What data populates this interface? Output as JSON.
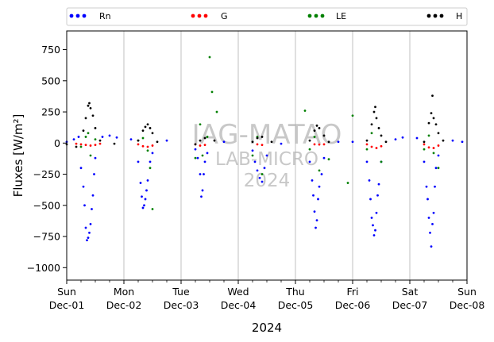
{
  "chart_data": {
    "type": "scatter",
    "ylabel": "Fluxes [W/m²]",
    "xlabel": "2024",
    "ylim": [
      -1100,
      900
    ],
    "yticks": [
      -1000,
      -750,
      -500,
      -250,
      0,
      250,
      500,
      750
    ],
    "xlim": [
      "2024-12-01",
      "2024-12-08"
    ],
    "xticks": [
      {
        "day": "Sun",
        "date": "Dec-01"
      },
      {
        "day": "Mon",
        "date": "Dec-02"
      },
      {
        "day": "Tue",
        "date": "Dec-03"
      },
      {
        "day": "Wed",
        "date": "Dec-04"
      },
      {
        "day": "Thu",
        "date": "Dec-05"
      },
      {
        "day": "Fri",
        "date": "Dec-06"
      },
      {
        "day": "Sat",
        "date": "Dec-07"
      },
      {
        "day": "Sun",
        "date": "Dec-08"
      }
    ],
    "grid": "vertical",
    "legend": "top, outside",
    "watermark": [
      "IAG-MATAO",
      "LAB-MICRO",
      "2024"
    ],
    "series": [
      {
        "name": "Rn",
        "color": "#0000ff",
        "points": [
          [
            "2024-12-01 00:00",
            10
          ],
          [
            "2024-12-01 03:00",
            30
          ],
          [
            "2024-12-01 05:00",
            50
          ],
          [
            "2024-12-01 06:00",
            -200
          ],
          [
            "2024-12-01 07:00",
            -350
          ],
          [
            "2024-12-01 07:30",
            -500
          ],
          [
            "2024-12-01 08:00",
            -680
          ],
          [
            "2024-12-01 08:30",
            -780
          ],
          [
            "2024-12-01 09:00",
            -760
          ],
          [
            "2024-12-01 09:30",
            -720
          ],
          [
            "2024-12-01 10:00",
            -650
          ],
          [
            "2024-12-01 10:30",
            -530
          ],
          [
            "2024-12-01 11:00",
            -420
          ],
          [
            "2024-12-01 11:30",
            -250
          ],
          [
            "2024-12-01 12:00",
            -120
          ],
          [
            "2024-12-01 15:00",
            50
          ],
          [
            "2024-12-01 18:00",
            60
          ],
          [
            "2024-12-01 21:00",
            45
          ],
          [
            "2024-12-02 03:00",
            30
          ],
          [
            "2024-12-02 06:00",
            -150
          ],
          [
            "2024-12-02 07:00",
            -320
          ],
          [
            "2024-12-02 07:30",
            -430
          ],
          [
            "2024-12-02 08:00",
            -520
          ],
          [
            "2024-12-02 08:30",
            -500
          ],
          [
            "2024-12-02 09:00",
            -450
          ],
          [
            "2024-12-02 09:30",
            -380
          ],
          [
            "2024-12-02 10:00",
            -300
          ],
          [
            "2024-12-02 11:00",
            -150
          ],
          [
            "2024-12-02 12:00",
            -80
          ],
          [
            "2024-12-02 18:00",
            20
          ],
          [
            "2024-12-03 06:00",
            -50
          ],
          [
            "2024-12-03 07:00",
            -120
          ],
          [
            "2024-12-03 08:00",
            -250
          ],
          [
            "2024-12-03 08:30",
            -430
          ],
          [
            "2024-12-03 09:00",
            -380
          ],
          [
            "2024-12-03 09:30",
            -250
          ],
          [
            "2024-12-03 10:00",
            -150
          ],
          [
            "2024-12-03 11:00",
            -80
          ],
          [
            "2024-12-03 18:00",
            10
          ],
          [
            "2024-12-04 06:00",
            -60
          ],
          [
            "2024-12-04 07:00",
            -150
          ],
          [
            "2024-12-04 08:00",
            -220
          ],
          [
            "2024-12-04 09:00",
            -280
          ],
          [
            "2024-12-04 10:00",
            -310
          ],
          [
            "2024-12-04 11:00",
            -200
          ],
          [
            "2024-12-04 12:00",
            -100
          ],
          [
            "2024-12-04 18:00",
            -5
          ],
          [
            "2024-12-05 06:00",
            -150
          ],
          [
            "2024-12-05 07:00",
            -300
          ],
          [
            "2024-12-05 07:30",
            -420
          ],
          [
            "2024-12-05 08:00",
            -550
          ],
          [
            "2024-12-05 08:30",
            -680
          ],
          [
            "2024-12-05 09:00",
            -620
          ],
          [
            "2024-12-05 09:30",
            -450
          ],
          [
            "2024-12-05 10:00",
            -350
          ],
          [
            "2024-12-05 11:00",
            -250
          ],
          [
            "2024-12-05 12:00",
            -120
          ],
          [
            "2024-12-05 18:00",
            10
          ],
          [
            "2024-12-06 00:00",
            10
          ],
          [
            "2024-12-06 06:00",
            -150
          ],
          [
            "2024-12-06 07:00",
            -300
          ],
          [
            "2024-12-06 07:30",
            -450
          ],
          [
            "2024-12-06 08:00",
            -600
          ],
          [
            "2024-12-06 08:30",
            -660
          ],
          [
            "2024-12-06 09:00",
            -740
          ],
          [
            "2024-12-06 09:30",
            -700
          ],
          [
            "2024-12-06 10:00",
            -560
          ],
          [
            "2024-12-06 10:30",
            -420
          ],
          [
            "2024-12-06 11:00",
            -330
          ],
          [
            "2024-12-06 12:00",
            -150
          ],
          [
            "2024-12-06 18:00",
            30
          ],
          [
            "2024-12-06 21:00",
            45
          ],
          [
            "2024-12-07 03:00",
            40
          ],
          [
            "2024-12-07 06:00",
            -150
          ],
          [
            "2024-12-07 07:00",
            -350
          ],
          [
            "2024-12-07 07:30",
            -450
          ],
          [
            "2024-12-07 08:00",
            -600
          ],
          [
            "2024-12-07 08:30",
            -720
          ],
          [
            "2024-12-07 09:00",
            -830
          ],
          [
            "2024-12-07 09:30",
            -650
          ],
          [
            "2024-12-07 10:00",
            -560
          ],
          [
            "2024-12-07 10:30",
            -350
          ],
          [
            "2024-12-07 11:00",
            -200
          ],
          [
            "2024-12-07 12:00",
            -100
          ],
          [
            "2024-12-07 18:00",
            20
          ],
          [
            "2024-12-07 22:00",
            10
          ]
        ]
      },
      {
        "name": "G",
        "color": "#ff0000",
        "points": [
          [
            "2024-12-01 04:00",
            -5
          ],
          [
            "2024-12-01 06:00",
            -10
          ],
          [
            "2024-12-01 08:00",
            -15
          ],
          [
            "2024-12-01 10:00",
            -20
          ],
          [
            "2024-12-01 12:00",
            -15
          ],
          [
            "2024-12-01 14:00",
            -5
          ],
          [
            "2024-12-02 06:00",
            -10
          ],
          [
            "2024-12-02 08:00",
            -25
          ],
          [
            "2024-12-02 10:00",
            -30
          ],
          [
            "2024-12-02 12:00",
            -20
          ],
          [
            "2024-12-03 06:00",
            -10
          ],
          [
            "2024-12-03 08:00",
            -20
          ],
          [
            "2024-12-03 10:00",
            -15
          ],
          [
            "2024-12-04 08:00",
            -10
          ],
          [
            "2024-12-04 10:00",
            -15
          ],
          [
            "2024-12-05 08:00",
            -10
          ],
          [
            "2024-12-05 10:00",
            -12
          ],
          [
            "2024-12-05 12:00",
            -10
          ],
          [
            "2024-12-06 06:00",
            -10
          ],
          [
            "2024-12-06 08:00",
            -30
          ],
          [
            "2024-12-06 10:00",
            -40
          ],
          [
            "2024-12-06 12:00",
            -25
          ],
          [
            "2024-12-07 06:00",
            -10
          ],
          [
            "2024-12-07 08:00",
            -35
          ],
          [
            "2024-12-07 10:00",
            -40
          ],
          [
            "2024-12-07 12:00",
            -20
          ]
        ]
      },
      {
        "name": "LE",
        "color": "#008000",
        "points": [
          [
            "2024-12-01 06:00",
            -30
          ],
          [
            "2024-12-01 08:00",
            50
          ],
          [
            "2024-12-01 09:00",
            80
          ],
          [
            "2024-12-01 10:00",
            -100
          ],
          [
            "2024-12-01 12:00",
            30
          ],
          [
            "2024-12-02 06:00",
            20
          ],
          [
            "2024-12-02 08:00",
            40
          ],
          [
            "2024-12-02 10:00",
            -60
          ],
          [
            "2024-12-02 11:00",
            -200
          ],
          [
            "2024-12-02 12:00",
            -530
          ],
          [
            "2024-12-03 06:00",
            -120
          ],
          [
            "2024-12-03 08:00",
            150
          ],
          [
            "2024-12-03 09:00",
            -100
          ],
          [
            "2024-12-03 11:00",
            50
          ],
          [
            "2024-12-03 12:00",
            690
          ],
          [
            "2024-12-03 13:00",
            410
          ],
          [
            "2024-12-03 15:00",
            250
          ],
          [
            "2024-12-04 06:00",
            -100
          ],
          [
            "2024-12-04 08:00",
            50
          ],
          [
            "2024-12-04 10:00",
            -250
          ],
          [
            "2024-12-05 04:00",
            260
          ],
          [
            "2024-12-05 06:00",
            -50
          ],
          [
            "2024-12-05 08:00",
            50
          ],
          [
            "2024-12-05 10:00",
            -220
          ],
          [
            "2024-12-05 14:00",
            -130
          ],
          [
            "2024-12-05 22:00",
            -320
          ],
          [
            "2024-12-06 00:00",
            220
          ],
          [
            "2024-12-06 06:00",
            -50
          ],
          [
            "2024-12-06 08:00",
            80
          ],
          [
            "2024-12-06 12:00",
            -150
          ],
          [
            "2024-12-07 06:00",
            -50
          ],
          [
            "2024-12-07 08:00",
            60
          ],
          [
            "2024-12-07 10:00",
            -80
          ],
          [
            "2024-12-07 12:00",
            -200
          ]
        ]
      },
      {
        "name": "H",
        "color": "#000000",
        "points": [
          [
            "2024-12-01 00:00",
            -10
          ],
          [
            "2024-12-01 04:00",
            -30
          ],
          [
            "2024-12-01 07:00",
            100
          ],
          [
            "2024-12-01 08:00",
            200
          ],
          [
            "2024-12-01 09:00",
            300
          ],
          [
            "2024-12-01 09:30",
            320
          ],
          [
            "2024-12-01 10:00",
            280
          ],
          [
            "2024-12-01 11:00",
            220
          ],
          [
            "2024-12-01 12:00",
            120
          ],
          [
            "2024-12-01 14:00",
            20
          ],
          [
            "2024-12-01 20:00",
            -5
          ],
          [
            "2024-12-02 06:00",
            20
          ],
          [
            "2024-12-02 08:00",
            100
          ],
          [
            "2024-12-02 09:00",
            130
          ],
          [
            "2024-12-02 10:00",
            150
          ],
          [
            "2024-12-02 11:00",
            120
          ],
          [
            "2024-12-02 12:00",
            80
          ],
          [
            "2024-12-02 14:00",
            10
          ],
          [
            "2024-12-03 06:00",
            -10
          ],
          [
            "2024-12-03 08:00",
            20
          ],
          [
            "2024-12-03 10:00",
            40
          ],
          [
            "2024-12-03 14:00",
            20
          ],
          [
            "2024-12-04 06:00",
            10
          ],
          [
            "2024-12-04 08:00",
            40
          ],
          [
            "2024-12-04 10:00",
            50
          ],
          [
            "2024-12-04 14:00",
            10
          ],
          [
            "2024-12-05 06:00",
            20
          ],
          [
            "2024-12-05 08:00",
            100
          ],
          [
            "2024-12-05 09:00",
            140
          ],
          [
            "2024-12-05 10:00",
            120
          ],
          [
            "2024-12-05 12:00",
            60
          ],
          [
            "2024-12-05 14:00",
            10
          ],
          [
            "2024-12-06 06:00",
            20
          ],
          [
            "2024-12-06 08:00",
            150
          ],
          [
            "2024-12-06 09:00",
            250
          ],
          [
            "2024-12-06 09:30",
            290
          ],
          [
            "2024-12-06 10:00",
            200
          ],
          [
            "2024-12-06 11:00",
            120
          ],
          [
            "2024-12-06 12:00",
            60
          ],
          [
            "2024-12-06 14:00",
            10
          ],
          [
            "2024-12-07 06:00",
            10
          ],
          [
            "2024-12-07 08:00",
            160
          ],
          [
            "2024-12-07 09:00",
            240
          ],
          [
            "2024-12-07 09:30",
            380
          ],
          [
            "2024-12-07 10:00",
            200
          ],
          [
            "2024-12-07 11:00",
            150
          ],
          [
            "2024-12-07 12:00",
            80
          ],
          [
            "2024-12-07 14:00",
            20
          ]
        ]
      }
    ]
  }
}
